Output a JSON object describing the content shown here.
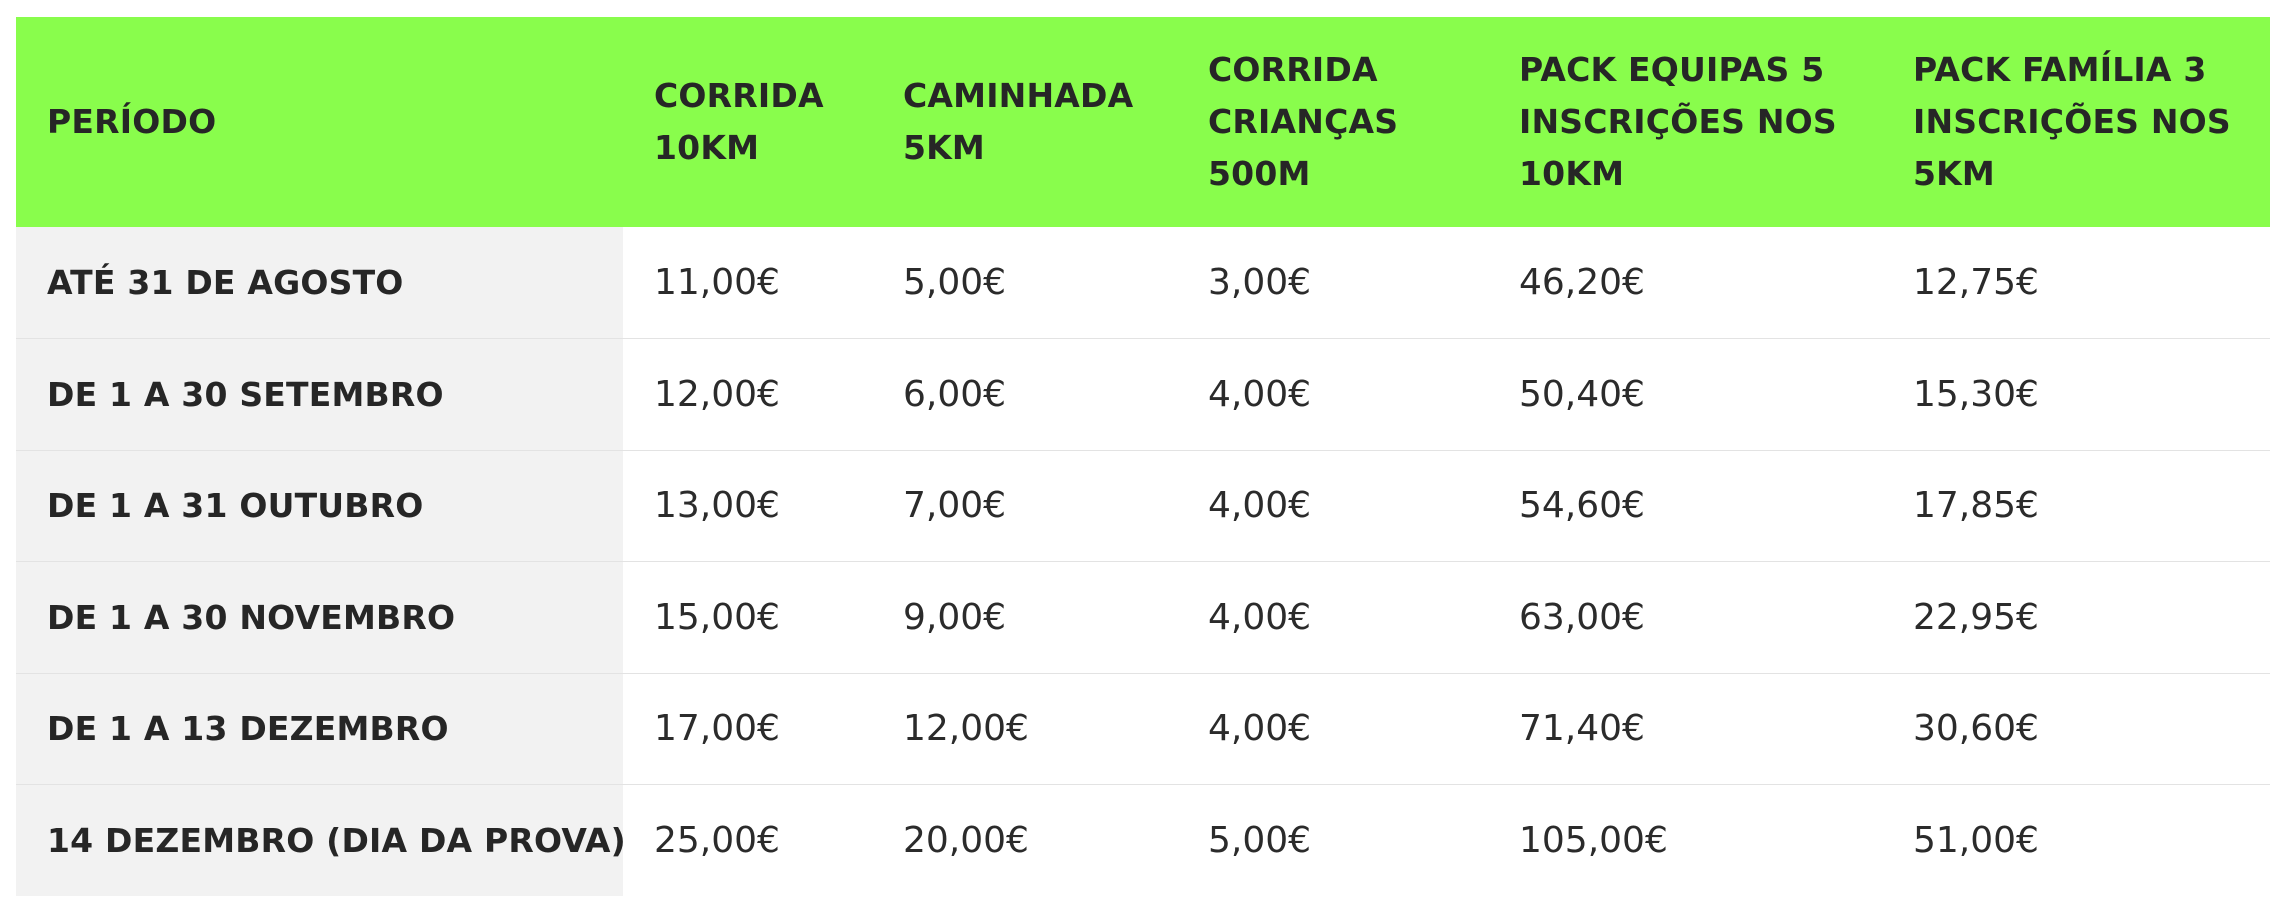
{
  "table": {
    "headers": [
      "PERÍODO",
      "CORRIDA 10KM",
      "CAMINHADA 5KM",
      "CORRIDA CRIANÇAS 500M",
      "PACK EQUIPAS 5 INSCRIÇÕES NOS 10KM",
      "PACK FAMÍLIA 3 INSCRIÇÕES NOS 5KM"
    ],
    "rows": [
      {
        "cells": [
          "ATÉ 31 DE AGOSTO",
          "11,00€",
          "5,00€",
          "3,00€",
          "46,20€",
          "12,75€"
        ]
      },
      {
        "cells": [
          "DE 1 A 30 SETEMBRO",
          "12,00€",
          "6,00€",
          "4,00€",
          "50,40€",
          "15,30€"
        ]
      },
      {
        "cells": [
          "DE 1 A 31 OUTUBRO",
          "13,00€",
          "7,00€",
          "4,00€",
          "54,60€",
          "17,85€"
        ]
      },
      {
        "cells": [
          "DE 1 A 30 NOVEMBRO",
          "15,00€",
          "9,00€",
          "4,00€",
          "63,00€",
          "22,95€"
        ]
      },
      {
        "cells": [
          "DE 1 A 13 DEZEMBRO",
          "17,00€",
          "12,00€",
          "4,00€",
          "71,40€",
          "30,60€"
        ]
      },
      {
        "cells": [
          "14 DEZEMBRO (DIA DA PROVA)",
          "25,00€",
          "20,00€",
          "5,00€",
          "105,00€",
          "51,00€"
        ]
      }
    ],
    "colors": {
      "header_background": "#89fd4c",
      "period_column_background": "#f2f2f2",
      "row_divider": "#e3e3e3"
    }
  }
}
